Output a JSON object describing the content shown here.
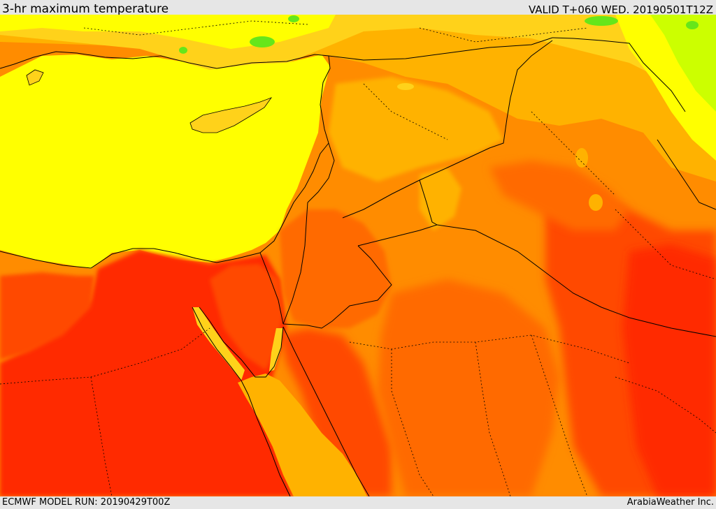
{
  "header": {
    "title": "3-hr maximum temperature",
    "valid": "VALID T+060 WED. 20190501T12Z"
  },
  "footer": {
    "model_run": "ECMWF MODEL RUN: 20190429T00Z",
    "credit": "ArabiaWeather Inc."
  },
  "map": {
    "variable": "3-hr maximum temperature",
    "colors": {
      "green": "#66e61a",
      "yellow_green": "#ccff00",
      "yellow": "#ffff00",
      "gold": "#ffd21a",
      "light_orange": "#ffb200",
      "orange": "#ff8c00",
      "dark_orange": "#ff6a00",
      "red_orange": "#ff4a00",
      "red": "#ff2a00",
      "deep_red": "#e81800"
    }
  }
}
